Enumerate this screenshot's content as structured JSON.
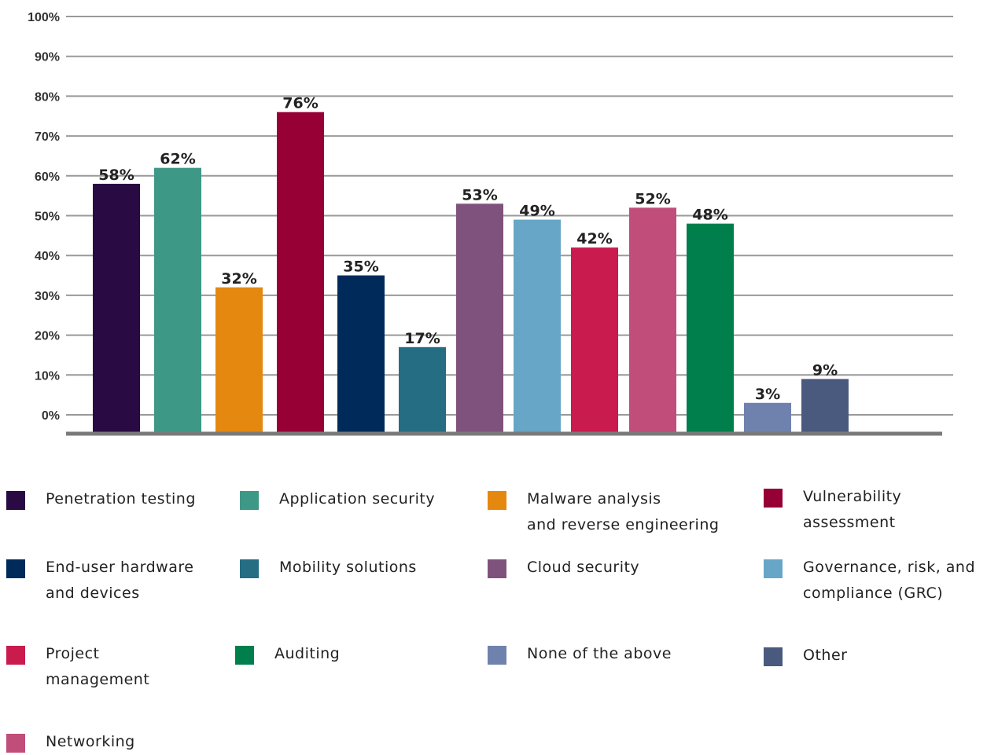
{
  "chart_data": {
    "type": "bar",
    "title": "",
    "xlabel": "",
    "ylabel": "",
    "ylim": [
      0,
      100
    ],
    "yticks": [
      "0%",
      "10%",
      "20%",
      "30%",
      "40%",
      "50%",
      "60%",
      "70%",
      "80%",
      "90%",
      "100%"
    ],
    "grid": true,
    "legend_position": "bottom",
    "categories": [
      "Penetration testing",
      "Application security",
      "Malware analysis and reverse engineering",
      "Vulnerability assessment",
      "End-user hardware and devices",
      "Mobility solutions",
      "Cloud security",
      "Governance, risk, and compliance (GRC)",
      "Project management",
      "Networking",
      "Auditing",
      "None of the above",
      "Other"
    ],
    "values": [
      58,
      62,
      32,
      76,
      35,
      17,
      53,
      49,
      42,
      52,
      48,
      3,
      9
    ],
    "value_labels": [
      "58%",
      "62%",
      "32%",
      "76%",
      "35%",
      "17%",
      "53%",
      "49%",
      "42%",
      "52%",
      "48%",
      "3%",
      "9%"
    ],
    "colors": [
      "#2a0a42",
      "#3e9886",
      "#e58810",
      "#960035",
      "#002a5a",
      "#246d83",
      "#7f527d",
      "#67a6c6",
      "#c91b4e",
      "#c04d7a",
      "#007f4c",
      "#6f82ae",
      "#4a5a7e"
    ]
  },
  "legend": [
    {
      "label": "Penetration testing",
      "color": "#2a0a42"
    },
    {
      "label": "Application security",
      "color": "#3e9886"
    },
    {
      "label": "Malware analysis\nand reverse engineering",
      "color": "#e58810"
    },
    {
      "label": "Vulnerability\nassessment",
      "color": "#960035"
    },
    {
      "label": "End-user hardware\nand devices",
      "color": "#002a5a"
    },
    {
      "label": "Mobility solutions",
      "color": "#246d83"
    },
    {
      "label": "Cloud security",
      "color": "#7f527d"
    },
    {
      "label": "Governance, risk, and\ncompliance (GRC)",
      "color": "#67a6c6"
    },
    {
      "label": "Project\nmanagement",
      "color": "#c91b4e"
    },
    {
      "label": "Auditing",
      "color": "#007f4c"
    },
    {
      "label": "None of the above",
      "color": "#6f82ae"
    },
    {
      "label": "Other",
      "color": "#4a5a7e"
    },
    {
      "label": "Networking",
      "color": "#c04d7a"
    }
  ]
}
